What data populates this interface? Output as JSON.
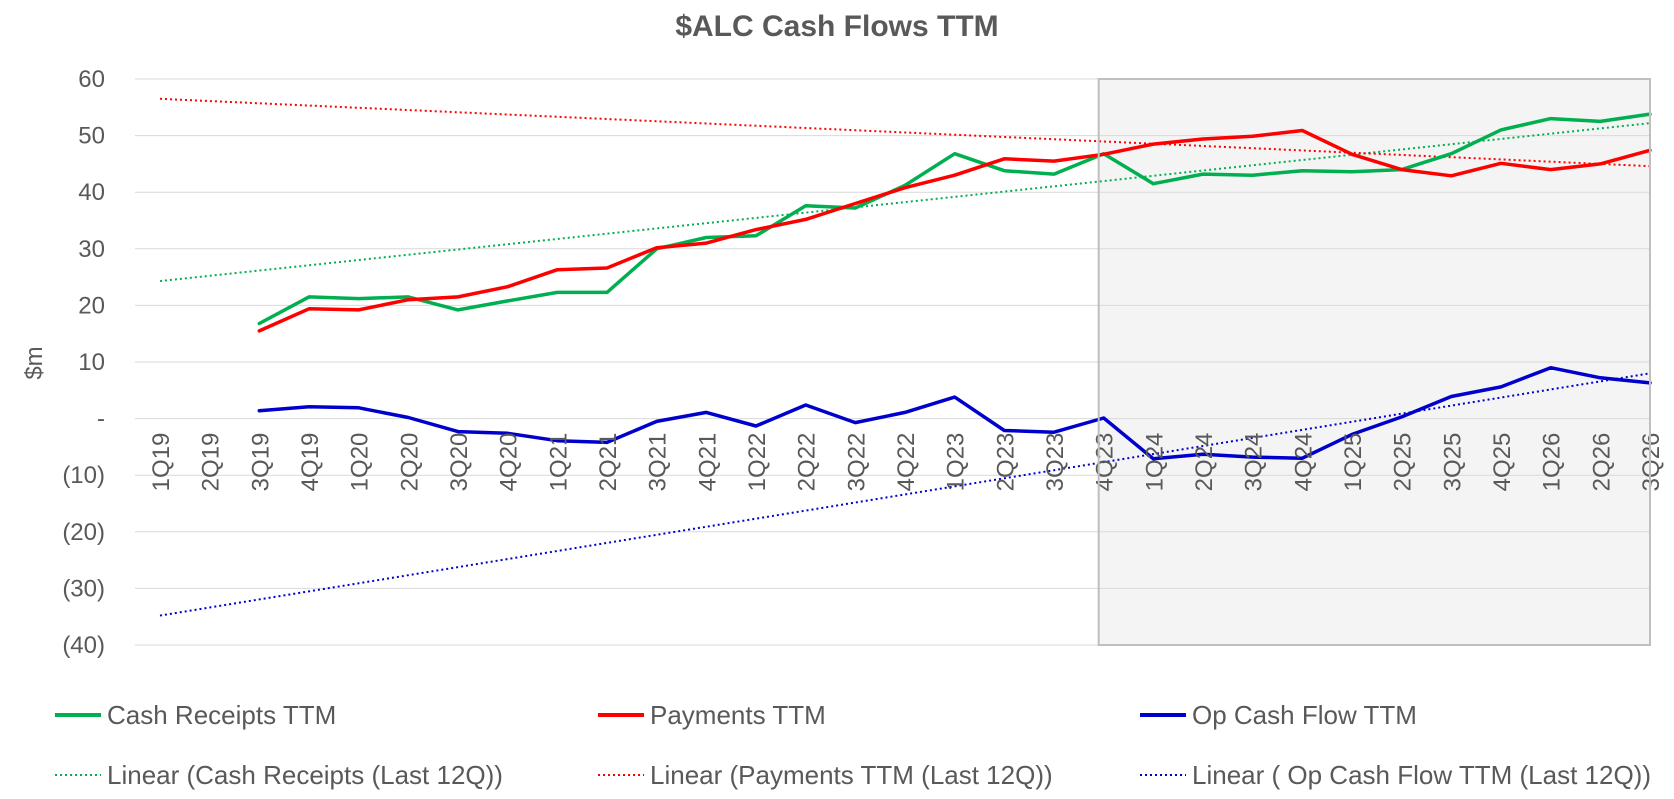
{
  "chart_data": {
    "type": "line",
    "title": "$ALC  Cash Flows TTM",
    "ylabel": "$m",
    "xlabel": "",
    "ylim": [
      -40,
      60
    ],
    "y_ticks": [
      {
        "value": 60,
        "label": "60"
      },
      {
        "value": 50,
        "label": "50"
      },
      {
        "value": 40,
        "label": "40"
      },
      {
        "value": 30,
        "label": "30"
      },
      {
        "value": 20,
        "label": "20"
      },
      {
        "value": 10,
        "label": "10"
      },
      {
        "value": 0,
        "label": "-"
      },
      {
        "value": -10,
        "label": "(10)"
      },
      {
        "value": -20,
        "label": "(20)"
      },
      {
        "value": -30,
        "label": "(30)"
      },
      {
        "value": -40,
        "label": "(40)"
      }
    ],
    "categories": [
      "1Q19",
      "2Q19",
      "3Q19",
      "4Q19",
      "1Q20",
      "2Q20",
      "3Q20",
      "4Q20",
      "1Q21",
      "2Q21",
      "3Q21",
      "4Q21",
      "1Q22",
      "2Q22",
      "3Q22",
      "4Q22",
      "1Q23",
      "2Q23",
      "3Q23",
      "4Q23",
      "1Q24",
      "2Q24",
      "3Q24",
      "4Q24",
      "1Q25",
      "2Q25",
      "3Q25",
      "4Q25",
      "1Q26",
      "2Q26",
      "3Q26"
    ],
    "shaded_region": {
      "from": "4Q23",
      "to": "3Q26"
    },
    "grid": true,
    "legend_position": "bottom",
    "series": [
      {
        "name": "Cash Receipts TTM",
        "color": "#00b050",
        "style": "solid",
        "values": [
          null,
          null,
          16.8,
          21.5,
          21.2,
          21.5,
          19.2,
          20.8,
          22.3,
          22.3,
          30.0,
          32.0,
          32.3,
          37.6,
          37.2,
          41.2,
          46.8,
          43.8,
          43.2,
          46.8,
          41.5,
          43.2,
          43.0,
          43.8,
          43.6,
          44.0,
          46.8,
          51.0,
          53.0,
          52.5,
          53.8
        ]
      },
      {
        "name": "Payments TTM",
        "color": "#ff0000",
        "style": "solid",
        "values": [
          null,
          null,
          15.5,
          19.4,
          19.2,
          21.0,
          21.5,
          23.3,
          26.3,
          26.6,
          30.2,
          31.0,
          33.4,
          35.2,
          38.0,
          40.8,
          43.0,
          45.9,
          45.5,
          46.7,
          48.5,
          49.4,
          49.9,
          50.9,
          46.7,
          44.0,
          42.9,
          45.1,
          44.0,
          45.0,
          47.4
        ]
      },
      {
        "name": "Op Cash Flow TTM",
        "color": "#0000cc",
        "style": "solid",
        "values": [
          null,
          null,
          1.4,
          2.1,
          1.9,
          0.2,
          -2.3,
          -2.6,
          -3.9,
          -4.2,
          -0.5,
          1.1,
          -1.3,
          2.4,
          -0.7,
          1.1,
          3.8,
          -2.1,
          -2.4,
          0.1,
          -7.1,
          -6.3,
          -6.8,
          -7.0,
          -2.8,
          0.3,
          3.9,
          5.6,
          9.0,
          7.2,
          6.3
        ]
      },
      {
        "name": "Linear (Cash Receipts (Last 12Q))",
        "color": "#00b050",
        "style": "dotted",
        "start": 24.3,
        "end": 52.2
      },
      {
        "name": "Linear (Payments TTM (Last 12Q))",
        "color": "#ff0000",
        "style": "dotted",
        "start": 56.5,
        "end": 44.6
      },
      {
        "name": "Linear ( Op Cash Flow TTM (Last 12Q))",
        "color": "#0000cc",
        "style": "dotted",
        "start": -34.8,
        "end": 8.0
      }
    ]
  }
}
